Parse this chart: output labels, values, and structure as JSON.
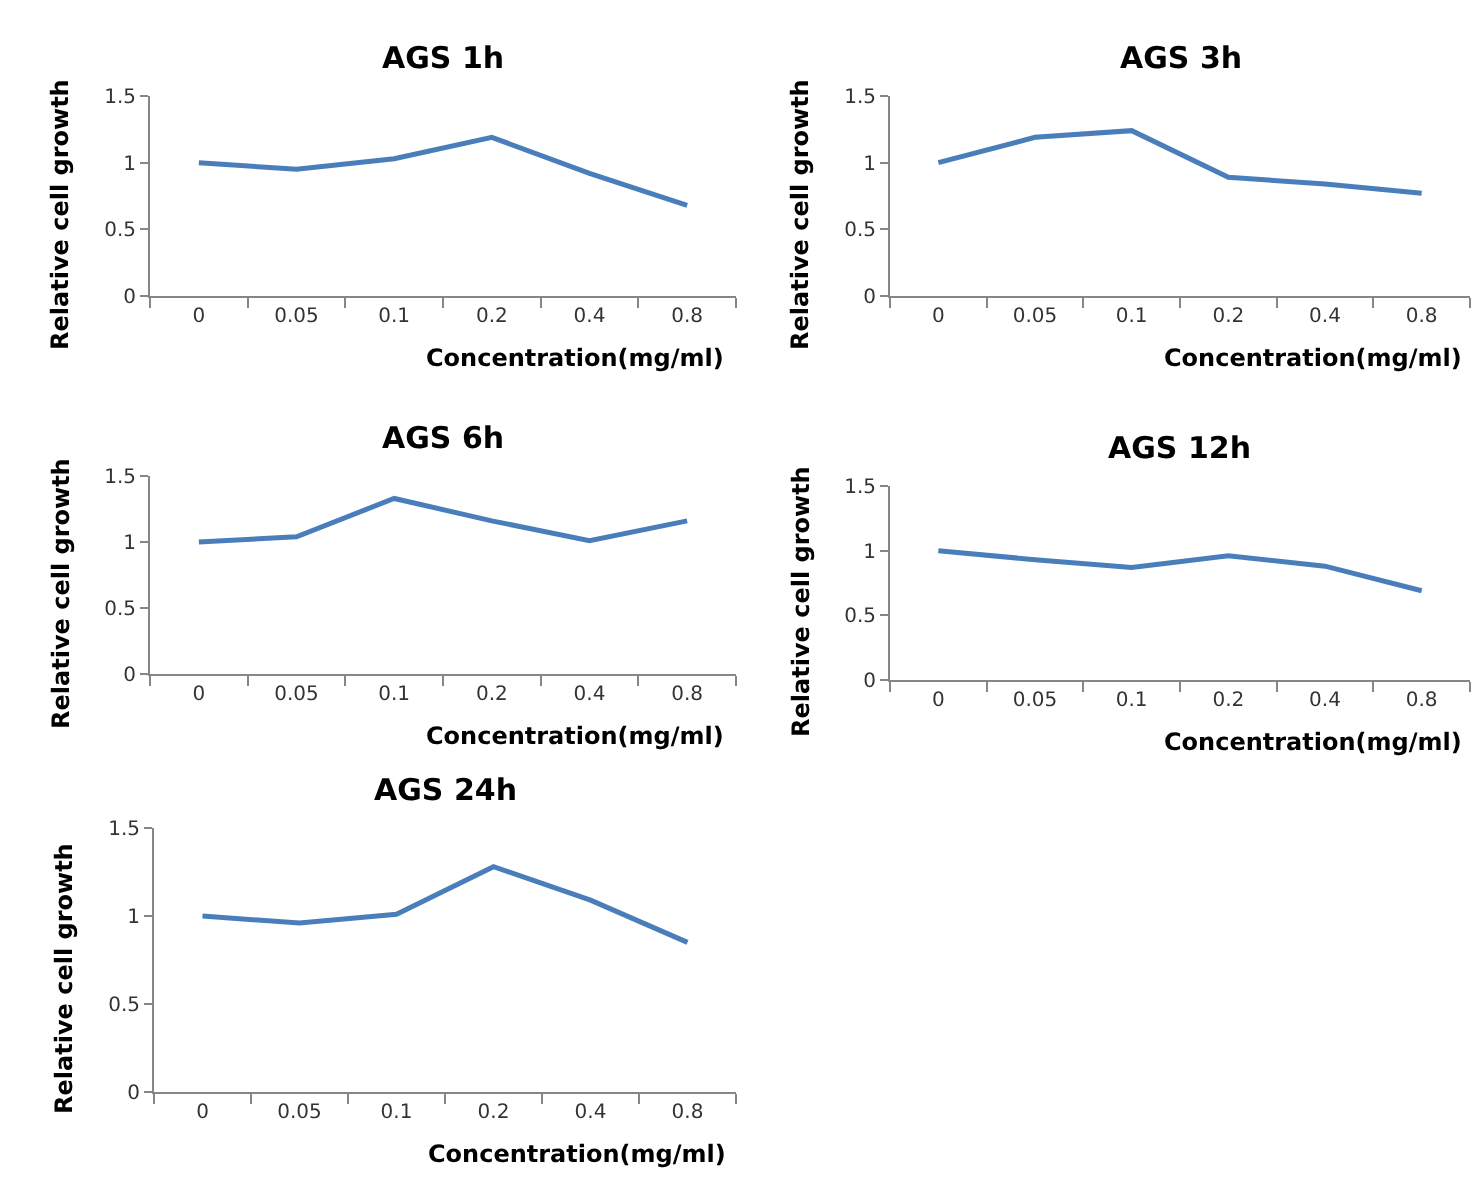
{
  "chart_data": [
    {
      "type": "line",
      "title": "AGS 1h",
      "xlabel": "Concentration(mg/ml)",
      "ylabel": "Relative cell growth",
      "categories": [
        "0",
        "0.05",
        "0.1",
        "0.2",
        "0.4",
        "0.8"
      ],
      "series": [
        {
          "color": "#4a7ebb",
          "values": [
            1.0,
            0.95,
            1.03,
            1.19,
            0.92,
            0.68
          ]
        }
      ],
      "ylim": [
        0,
        1.5
      ],
      "yticks": [
        0,
        0.5,
        1,
        1.5
      ]
    },
    {
      "type": "line",
      "title": "AGS 3h",
      "xlabel": "Concentration(mg/ml)",
      "ylabel": "Relative cell growth",
      "categories": [
        "0",
        "0.05",
        "0.1",
        "0.2",
        "0.4",
        "0.8"
      ],
      "series": [
        {
          "color": "#4a7ebb",
          "values": [
            1.0,
            1.19,
            1.24,
            0.89,
            0.84,
            0.77
          ]
        }
      ],
      "ylim": [
        0,
        1.5
      ],
      "yticks": [
        0,
        0.5,
        1,
        1.5
      ]
    },
    {
      "type": "line",
      "title": "AGS 6h",
      "xlabel": "Concentration(mg/ml)",
      "ylabel": "Relative cell growth",
      "categories": [
        "0",
        "0.05",
        "0.1",
        "0.2",
        "0.4",
        "0.8"
      ],
      "series": [
        {
          "color": "#4a7ebb",
          "values": [
            1.0,
            1.04,
            1.33,
            1.16,
            1.01,
            1.16
          ]
        }
      ],
      "ylim": [
        0,
        1.5
      ],
      "yticks": [
        0,
        0.5,
        1,
        1.5
      ]
    },
    {
      "type": "line",
      "title": "AGS 12h",
      "xlabel": "Concentration(mg/ml)",
      "ylabel": "Relative cell growth",
      "categories": [
        "0",
        "0.05",
        "0.1",
        "0.2",
        "0.4",
        "0.8"
      ],
      "series": [
        {
          "color": "#4a7ebb",
          "values": [
            1.0,
            0.93,
            0.87,
            0.96,
            0.88,
            0.69
          ]
        }
      ],
      "ylim": [
        0,
        1.5
      ],
      "yticks": [
        0,
        0.5,
        1,
        1.5
      ]
    },
    {
      "type": "line",
      "title": "AGS 24h",
      "xlabel": "Concentration(mg/ml)",
      "ylabel": "Relative cell growth",
      "categories": [
        "0",
        "0.05",
        "0.1",
        "0.2",
        "0.4",
        "0.8"
      ],
      "series": [
        {
          "color": "#4a7ebb",
          "values": [
            1.0,
            0.96,
            1.01,
            1.28,
            1.09,
            0.85
          ]
        }
      ],
      "ylim": [
        0,
        1.5
      ],
      "yticks": [
        0,
        0.5,
        1,
        1.5
      ]
    }
  ]
}
